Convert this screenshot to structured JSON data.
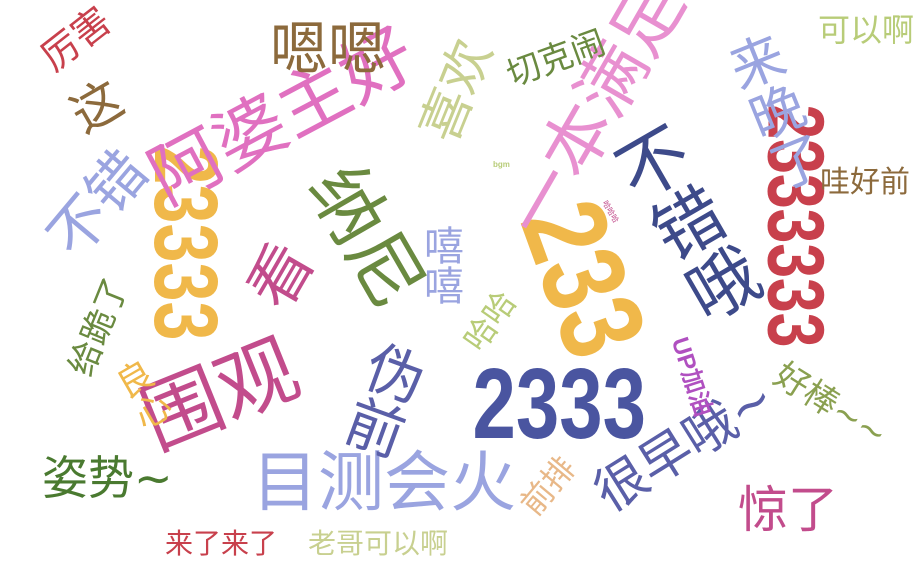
{
  "colors": {
    "purple": "#5a5fa8",
    "navy": "#3d4a8a",
    "red": "#c8404c",
    "gold": "#f0b84a",
    "pink": "#e070c0",
    "magenta": "#c24c8c",
    "brown": "#8c6a3c",
    "olive": "#6a8a40",
    "green": "#4a7a30",
    "lime": "#b8cc78",
    "lavender": "#9aa4e0",
    "tan": "#e8b888"
  },
  "words": [
    {
      "text": "2333",
      "color": "#4a55a0"
    },
    {
      "text": "233",
      "color": "#f0b84a"
    },
    {
      "text": "2333333",
      "color": "#c8404c"
    },
    {
      "text": "23333",
      "color": "#f0b84a"
    },
    {
      "text": "阿婆主好",
      "color": "#e070c0"
    },
    {
      "text": "一本满足",
      "color": "#e890d0"
    },
    {
      "text": "纳尼",
      "color": "#6a8a40"
    },
    {
      "text": "围观",
      "color": "#c24c8c"
    },
    {
      "text": "看",
      "color": "#c24c8c"
    },
    {
      "text": "不错哦",
      "color": "#3d4a8a"
    },
    {
      "text": "目测会火",
      "color": "#9aa4e0"
    },
    {
      "text": "很早哦~",
      "color": "#5a5fa8"
    },
    {
      "text": "伪前",
      "color": "#5a5fa8"
    },
    {
      "text": "嗯嗯",
      "color": "#8c6a3c"
    },
    {
      "text": "来晚了",
      "color": "#9aa4e0"
    },
    {
      "text": "不错",
      "color": "#9aa4e0"
    },
    {
      "text": "喜欢",
      "color": "#c8d090"
    },
    {
      "text": "嘻嘻",
      "color": "#9aa4e0"
    },
    {
      "text": "姿势~",
      "color": "#4a7a30"
    },
    {
      "text": "惊了",
      "color": "#c24c8c"
    },
    {
      "text": "好棒~~",
      "color": "#8aa050"
    },
    {
      "text": "切克闹",
      "color": "#6a8a40"
    },
    {
      "text": "这",
      "color": "#8c6a3c"
    },
    {
      "text": "厉害",
      "color": "#c8404c"
    },
    {
      "text": "给跪了",
      "color": "#6a8a40"
    },
    {
      "text": "良心",
      "color": "#f0b84a"
    },
    {
      "text": "哈哈",
      "color": "#b8cc78"
    },
    {
      "text": "UP加油",
      "color": "#b050c0"
    },
    {
      "text": "前排",
      "color": "#e8b888"
    },
    {
      "text": "哇好前",
      "color": "#8c6a3c"
    },
    {
      "text": "可以啊",
      "color": "#b8cc78"
    },
    {
      "text": "来了来了",
      "color": "#c8404c"
    },
    {
      "text": "老哥可以啊",
      "color": "#c8d090"
    },
    {
      "text": "bgm",
      "color": "#b8cc78"
    },
    {
      "text": "哈哈哈",
      "color": "#c24c8c"
    }
  ]
}
